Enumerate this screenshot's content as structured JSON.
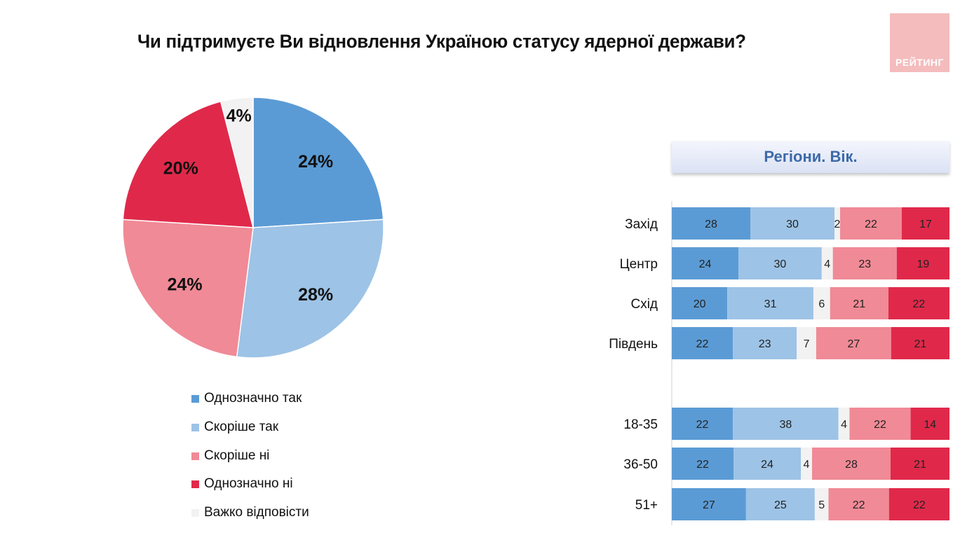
{
  "title": "Чи підтримуєте Ви відновлення Україною статусу ядерної держави?",
  "logo_text": "РЕЙТИНГ",
  "colors": {
    "definitely_yes": "#5b9bd5",
    "rather_yes": "#9dc3e6",
    "hard_to_say": "#f2f2f2",
    "rather_no": "#f08a96",
    "definitely_no": "#e0294a"
  },
  "chart_data": [
    {
      "type": "pie",
      "slices": [
        {
          "name": "Однозначно так",
          "value": 24,
          "label": "24%",
          "color": "#5b9bd5"
        },
        {
          "name": "Скоріше так",
          "value": 28,
          "label": "28%",
          "color": "#9dc3e6"
        },
        {
          "name": "Скоріше ні",
          "value": 24,
          "label": "24%",
          "color": "#f08a96"
        },
        {
          "name": "Однозначно ні",
          "value": 20,
          "label": "20%",
          "color": "#e0294a"
        },
        {
          "name": "Важко відповісти",
          "value": 4,
          "label": "4%",
          "color": "#f2f2f2"
        }
      ],
      "legend": [
        {
          "label": "Однозначно так",
          "color": "#5b9bd5"
        },
        {
          "label": "Скоріше так",
          "color": "#9dc3e6"
        },
        {
          "label": "Скоріше ні",
          "color": "#f08a96"
        },
        {
          "label": "Однозначно ні",
          "color": "#e0294a"
        },
        {
          "label": "Важко відповісти",
          "color": "#f2f2f2"
        }
      ],
      "legend_position": "bottom"
    },
    {
      "type": "bar",
      "orientation": "horizontal",
      "stacked": "100%",
      "title": "Регіони. Вік.",
      "series_order": [
        "Однозначно так",
        "Скоріше так",
        "Важко відповісти",
        "Скоріше ні",
        "Однозначно ні"
      ],
      "series_colors": [
        "#5b9bd5",
        "#9dc3e6",
        "#f2f2f2",
        "#f08a96",
        "#e0294a"
      ],
      "groups": [
        {
          "rows": [
            {
              "label": "Захід",
              "values": [
                28,
                30,
                2,
                22,
                17
              ]
            },
            {
              "label": "Центр",
              "values": [
                24,
                30,
                4,
                23,
                19
              ]
            },
            {
              "label": "Схід",
              "values": [
                20,
                31,
                6,
                21,
                22
              ]
            },
            {
              "label": "Південь",
              "values": [
                22,
                23,
                7,
                27,
                21
              ]
            }
          ]
        },
        {
          "rows": [
            {
              "label": "18-35",
              "values": [
                22,
                38,
                4,
                22,
                14
              ]
            },
            {
              "label": "36-50",
              "values": [
                22,
                24,
                4,
                28,
                21
              ]
            },
            {
              "label": "51+",
              "values": [
                27,
                25,
                5,
                22,
                22
              ]
            }
          ]
        }
      ]
    }
  ]
}
